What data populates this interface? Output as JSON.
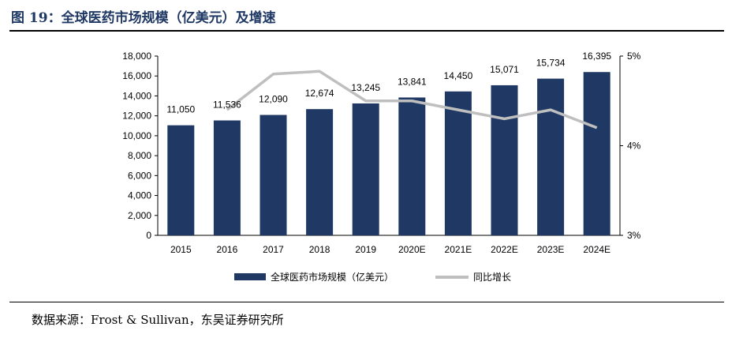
{
  "header": {
    "title": "图 19：全球医药市场规模（亿美元）及增速"
  },
  "footer": {
    "source": "数据来源：Frost & Sullivan，东吴证券研究所"
  },
  "colors": {
    "bar": "#1f3864",
    "line": "#bfbfbf",
    "title": "#1f3864"
  },
  "chart_data": {
    "type": "bar",
    "title": "全球医药市场规模（亿美元）及增速",
    "categories": [
      "2015",
      "2016",
      "2017",
      "2018",
      "2019",
      "2020E",
      "2021E",
      "2022E",
      "2023E",
      "2024E"
    ],
    "series": [
      {
        "name": "全球医药市场规模（亿美元）",
        "type": "bar",
        "axis": "left",
        "values": [
          11050,
          11536,
          12090,
          12674,
          13245,
          13841,
          14450,
          15071,
          15734,
          16395
        ]
      },
      {
        "name": "同比增长",
        "type": "line",
        "axis": "right",
        "values": [
          null,
          4.4,
          4.8,
          4.83,
          4.5,
          4.5,
          4.4,
          4.3,
          4.4,
          4.2
        ]
      }
    ],
    "data_labels": [
      "11,050",
      "11,536",
      "12,090",
      "12,674",
      "13,245",
      "13,841",
      "14,450",
      "15,071",
      "15,734",
      "16,395"
    ],
    "y_left": {
      "min": 0,
      "max": 18000,
      "ticks": [
        0,
        2000,
        4000,
        6000,
        8000,
        10000,
        12000,
        14000,
        16000,
        18000
      ],
      "tick_labels": [
        "0",
        "2,000",
        "4,000",
        "6,000",
        "8,000",
        "10,000",
        "12,000",
        "14,000",
        "16,000",
        "18,000"
      ]
    },
    "y_right": {
      "min": 3,
      "max": 5,
      "ticks": [
        3,
        4,
        5
      ],
      "tick_labels": [
        "3%",
        "4%",
        "5%"
      ]
    },
    "legend": [
      "全球医药市场规模（亿美元）",
      "同比增长"
    ],
    "grid": false
  }
}
